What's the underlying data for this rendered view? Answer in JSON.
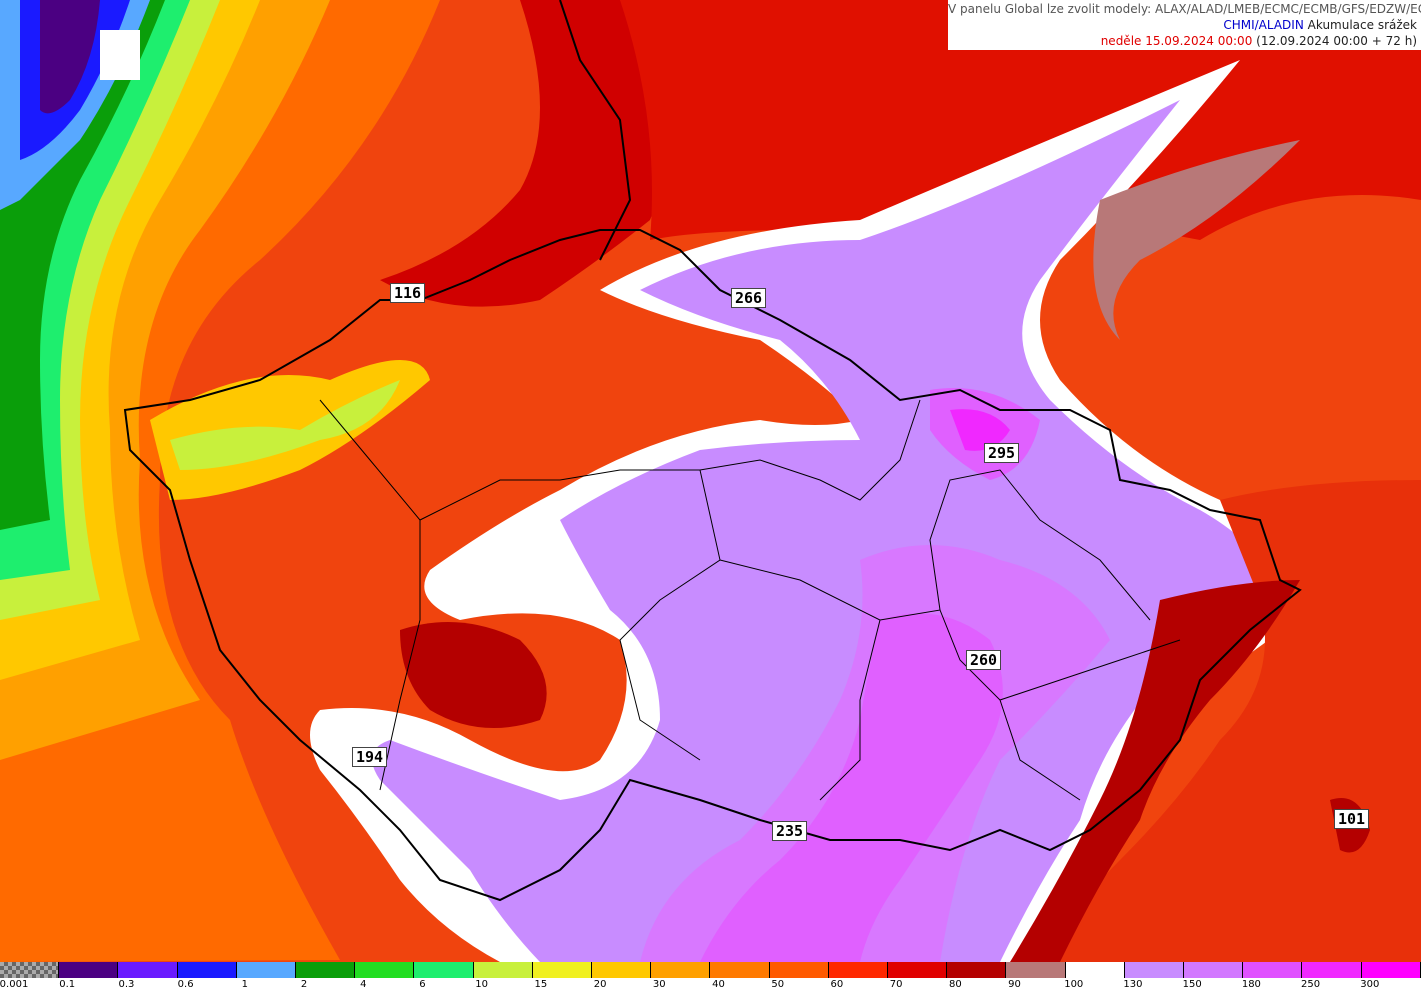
{
  "header": {
    "line1": "V panelu Global lze zvolit modely: ALAX/ALAD/LMEB/ECMC/ECMB/GFS/EDZW/EGRR",
    "model": "CHMI/ALADIN",
    "product": "Akumulace srážek",
    "valid_date": "neděle 15.09.2024 00:00",
    "run_info": "(12.09.2024 00:00 + 72 h)"
  },
  "map_labels": [
    "116",
    "266",
    "295",
    "260",
    "194",
    "235",
    "101"
  ],
  "legend": {
    "ticks": [
      "0.001",
      "0.1",
      "0.3",
      "0.6",
      "1",
      "2",
      "4",
      "6",
      "10",
      "15",
      "20",
      "30",
      "40",
      "50",
      "60",
      "70",
      "80",
      "90",
      "100",
      "130",
      "150",
      "180",
      "250",
      "300"
    ],
    "colors": [
      "checker",
      "#4b0082",
      "#6a1bff",
      "#1a1aff",
      "#58a8ff",
      "#0a9e0a",
      "#22dd22",
      "#1eee6e",
      "#c8f03c",
      "#f0f020",
      "#ffc800",
      "#ffa000",
      "#ff7a00",
      "#ff5a00",
      "#ff2800",
      "#e00000",
      "#b40000",
      "#b87878",
      "#ffffff",
      "#c88cff",
      "#d278ff",
      "#e050ff",
      "#f028ff",
      "#ff00ff"
    ]
  },
  "map_colors": {
    "base": "#f03c10",
    "pale_purple": "#c88cff",
    "purple": "#d278ff",
    "magenta": "#e050ff",
    "white": "#ffffff",
    "dark_red": "#b40000",
    "brown_pink": "#b87878"
  }
}
